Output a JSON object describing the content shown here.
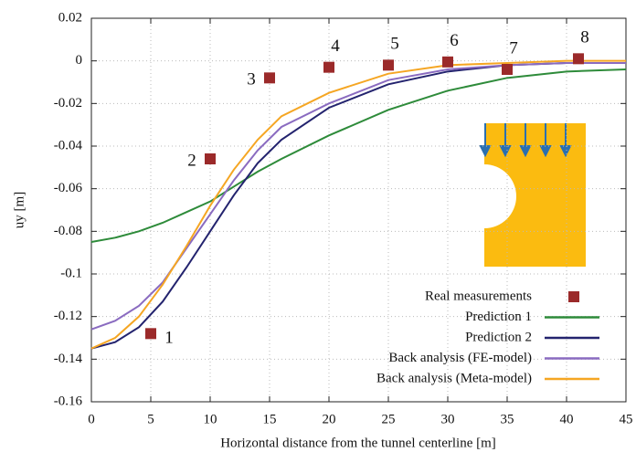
{
  "chart_data": {
    "type": "line",
    "x_label": "Horizontal distance from the tunnel centerline [m]",
    "y_label": "uy [m]",
    "xlim": [
      0,
      45
    ],
    "xticks": [
      0,
      5,
      10,
      15,
      20,
      25,
      30,
      35,
      40,
      45
    ],
    "ylim": [
      -0.16,
      0.02
    ],
    "yticks": [
      -0.16,
      -0.14,
      -0.12,
      -0.1,
      -0.08,
      -0.06,
      -0.04,
      -0.02,
      0,
      0.02
    ],
    "grid": true,
    "legend": "bottom-right",
    "series": [
      {
        "name": "Real measurements",
        "type": "scatter",
        "color": "#9b2a2a",
        "x": [
          5,
          10,
          15,
          20,
          25,
          30,
          35,
          41
        ],
        "values": [
          -0.128,
          -0.046,
          -0.008,
          -0.003,
          -0.002,
          -0.0005,
          -0.004,
          0.001
        ],
        "point_labels": [
          "1",
          "2",
          "3",
          "4",
          "5",
          "6",
          "7",
          "8"
        ]
      },
      {
        "name": "Prediction 1",
        "type": "line",
        "color": "#2e8b3a",
        "x": [
          0,
          2,
          4,
          6,
          8,
          10,
          12,
          14,
          16,
          20,
          25,
          30,
          35,
          40,
          45
        ],
        "values": [
          -0.085,
          -0.083,
          -0.08,
          -0.076,
          -0.071,
          -0.066,
          -0.059,
          -0.052,
          -0.046,
          -0.035,
          -0.023,
          -0.014,
          -0.008,
          -0.005,
          -0.004
        ]
      },
      {
        "name": "Prediction 2",
        "type": "line",
        "color": "#23236e",
        "x": [
          0,
          2,
          4,
          6,
          8,
          10,
          12,
          14,
          16,
          20,
          25,
          30,
          35,
          40,
          45
        ],
        "values": [
          -0.135,
          -0.132,
          -0.125,
          -0.113,
          -0.097,
          -0.08,
          -0.063,
          -0.048,
          -0.037,
          -0.022,
          -0.011,
          -0.005,
          -0.002,
          -0.001,
          -0.001
        ]
      },
      {
        "name": "Back analysis (FE-model)",
        "type": "line",
        "color": "#8a6bc0",
        "x": [
          0,
          2,
          4,
          6,
          8,
          10,
          12,
          14,
          16,
          20,
          25,
          30,
          35,
          40,
          45
        ],
        "values": [
          -0.126,
          -0.122,
          -0.115,
          -0.104,
          -0.088,
          -0.072,
          -0.056,
          -0.042,
          -0.031,
          -0.02,
          -0.009,
          -0.004,
          -0.002,
          -0.001,
          -0.001
        ]
      },
      {
        "name": "Back analysis (Meta-model)",
        "type": "line",
        "color": "#f5a623",
        "x": [
          0,
          2,
          4,
          6,
          8,
          10,
          12,
          14,
          16,
          20,
          25,
          30,
          35,
          40,
          45
        ],
        "values": [
          -0.135,
          -0.13,
          -0.12,
          -0.105,
          -0.087,
          -0.068,
          -0.051,
          -0.037,
          -0.026,
          -0.015,
          -0.006,
          -0.002,
          -0.001,
          0,
          0
        ]
      }
    ]
  }
}
